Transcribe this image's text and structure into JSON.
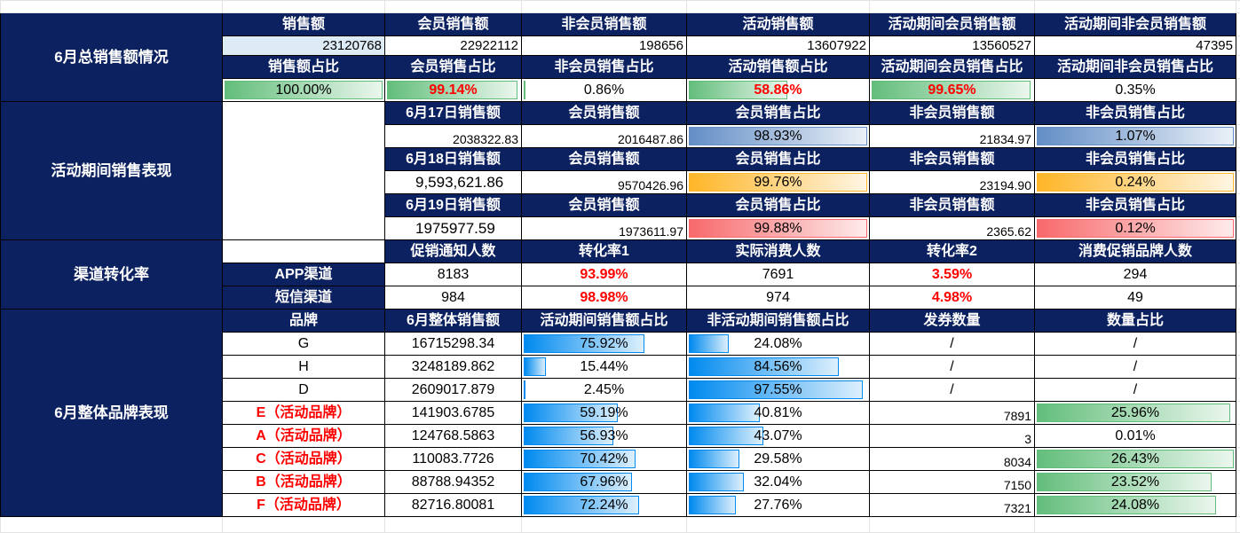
{
  "summary": {
    "title": "6月总销售额情况",
    "headers1": [
      "销售额",
      "会员销售额",
      "非会员销售额",
      "活动销售额",
      "活动期间会员销售额",
      "活动期间非会员销售额"
    ],
    "values1": [
      "23120768",
      "22922112",
      "198656",
      "13607922",
      "13560527",
      "47395"
    ],
    "headers2": [
      "销售额占比",
      "会员销售占比",
      "非会员销售占比",
      "活动销售额占比",
      "活动期间会员销售占比",
      "活动期间非会员销售占比"
    ],
    "ratios": [
      {
        "text": "100.00%",
        "fill": 1.0,
        "red": false
      },
      {
        "text": "99.14%",
        "fill": 0.99,
        "red": true
      },
      {
        "text": "0.86%",
        "fill": 0.01,
        "red": false
      },
      {
        "text": "58.86%",
        "fill": 0.56,
        "red": true
      },
      {
        "text": "99.65%",
        "fill": 0.99,
        "red": true
      },
      {
        "text": "0.35%",
        "fill": 0.0,
        "red": false
      }
    ],
    "bar_color": "#63be7b"
  },
  "activity": {
    "title": "活动期间销售表现",
    "days": [
      {
        "headers": [
          "6月17日销售额",
          "会员销售额",
          "会员销售占比",
          "非会员销售额",
          "非会员销售占比"
        ],
        "values": [
          "2038322.83",
          "2016487.86",
          "98.93%",
          "21834.97",
          "1.07%"
        ],
        "bar_color": "#638ec6",
        "first_style": "small"
      },
      {
        "headers": [
          "6月18日销售额",
          "会员销售额",
          "会员销售占比",
          "非会员销售额",
          "非会员销售占比"
        ],
        "values": [
          "9,593,621.86",
          "9570426.96",
          "99.76%",
          "23194.90",
          "0.24%"
        ],
        "bar_color": "#ffb628",
        "first_style": "big"
      },
      {
        "headers": [
          "6月19日销售额",
          "会员销售额",
          "会员销售占比",
          "非会员销售额",
          "非会员销售占比"
        ],
        "values": [
          "1975977.59",
          "1973611.97",
          "99.88%",
          "2365.62",
          "0.12%"
        ],
        "bar_color": "#f8696b",
        "first_style": "big"
      }
    ]
  },
  "channel": {
    "title": "渠道转化率",
    "headers": [
      "促销通知人数",
      "转化率1",
      "实际消费人数",
      "转化率2",
      "消费促销品牌人数"
    ],
    "rows": [
      {
        "name": "APP渠道",
        "values": [
          "8183",
          "93.99%",
          "7691",
          "3.59%",
          "294"
        ]
      },
      {
        "name": "短信渠道",
        "values": [
          "984",
          "98.98%",
          "974",
          "4.98%",
          "49"
        ]
      }
    ]
  },
  "brands": {
    "title": "6月整体品牌表现",
    "headers": [
      "品牌",
      "6月整体销售额",
      "活动期间销售额占比",
      "非活动期间销售额占比",
      "发券数量",
      "数量占比"
    ],
    "rows": [
      {
        "name": "G",
        "sales": "16715298.34",
        "act": "75.92%",
        "nonact": "24.08%",
        "coupons": "/",
        "coupon_pct": "/",
        "activity": false
      },
      {
        "name": "H",
        "sales": "3248189.862",
        "act": "15.44%",
        "nonact": "84.56%",
        "coupons": "/",
        "coupon_pct": "/",
        "activity": false
      },
      {
        "name": "D",
        "sales": "2609017.879",
        "act": "2.45%",
        "nonact": "97.55%",
        "coupons": "/",
        "coupon_pct": "/",
        "activity": false
      },
      {
        "name": "E（活动品牌）",
        "sales": "141903.6785",
        "act": "59.19%",
        "nonact": "40.81%",
        "coupons": "7891",
        "coupon_pct": "25.96%",
        "activity": true
      },
      {
        "name": "A（活动品牌）",
        "sales": "124768.5863",
        "act": "56.93%",
        "nonact": "43.07%",
        "coupons": "3",
        "coupon_pct": "0.01%",
        "activity": true
      },
      {
        "name": "C（活动品牌）",
        "sales": "110083.7726",
        "act": "70.42%",
        "nonact": "29.58%",
        "coupons": "8034",
        "coupon_pct": "26.43%",
        "activity": true
      },
      {
        "name": "B（活动品牌）",
        "sales": "88788.94352",
        "act": "67.96%",
        "nonact": "32.04%",
        "coupons": "7150",
        "coupon_pct": "23.52%",
        "activity": true
      },
      {
        "name": "F（活动品牌）",
        "sales": "82716.80081",
        "act": "72.24%",
        "nonact": "27.76%",
        "coupons": "7321",
        "coupon_pct": "24.08%",
        "activity": true
      }
    ],
    "share_bar_color": "#008aef",
    "coupon_bar_color": "#63be7b"
  }
}
